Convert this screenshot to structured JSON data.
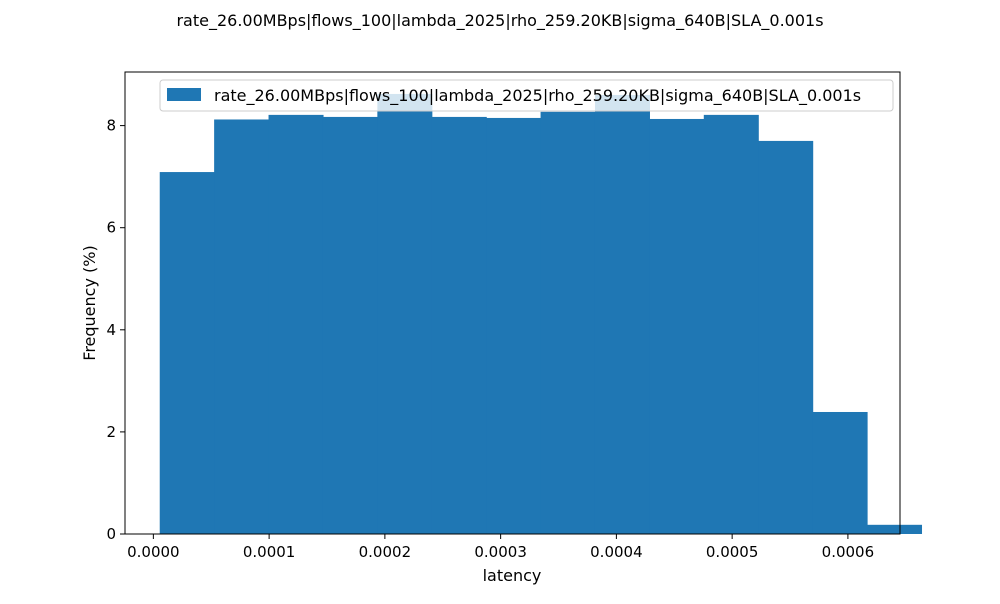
{
  "chart_data": {
    "type": "bar",
    "title": "rate_26.00MBps|flows_100|lambda_2025|rho_259.20KB|sigma_640B|SLA_0.001s",
    "xlabel": "latency",
    "ylabel": "Frequency (%)",
    "xlim": [
      -2.45e-05,
      0.000645
    ],
    "ylim": [
      0,
      9.05
    ],
    "bin_start": 5.5e-06,
    "bin_width": 4.7e-05,
    "values": [
      7.09,
      8.12,
      8.21,
      8.17,
      8.62,
      8.17,
      8.15,
      8.27,
      8.6,
      8.13,
      8.21,
      7.7,
      2.39,
      0.18
    ],
    "x_ticks": [
      0.0,
      0.0001,
      0.0002,
      0.0003,
      0.0004,
      0.0005,
      0.0006
    ],
    "x_tick_labels": [
      "0.0000",
      "0.0001",
      "0.0002",
      "0.0003",
      "0.0004",
      "0.0005",
      "0.0006"
    ],
    "y_ticks": [
      0,
      2,
      4,
      6,
      8
    ],
    "y_tick_labels": [
      "0",
      "2",
      "4",
      "6",
      "8"
    ],
    "series": [
      {
        "name": "rate_26.00MBps|flows_100|lambda_2025|rho_259.20KB|sigma_640B|SLA_0.001s",
        "color": "#1f77b4"
      }
    ],
    "legend_position": "top-right",
    "grid": false
  }
}
